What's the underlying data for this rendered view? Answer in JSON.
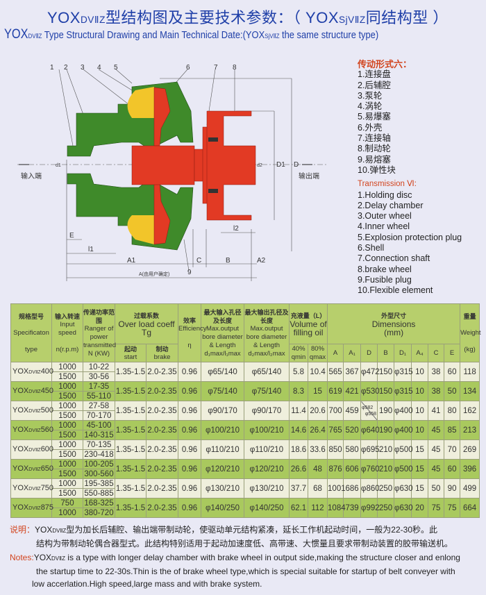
{
  "title": {
    "cn_prefix": "YOX",
    "cn_sub": "DVⅡZ",
    "cn_text": "型结构图及主要技术参数：（ YOX",
    "cn_sub2": "SjVⅡZ",
    "cn_tail": "同结构型 ）",
    "en_prefix": "YOX",
    "en_sub": "DVⅡZ",
    "en_text": " Type Structural Drawing and Main Technical Date:(YOX",
    "en_sub2": "SjVⅡZ",
    "en_tail": " the same structure type)"
  },
  "drawing": {
    "input_label": "输入端",
    "output_label": "输出端",
    "part_numbers": [
      "1",
      "2",
      "3",
      "4",
      "5",
      "6",
      "7",
      "8",
      "9",
      "10"
    ],
    "dims": {
      "A": "A(由用户确定)",
      "A1": "A1",
      "A2": "A2",
      "B": "B",
      "C": "C",
      "E": "E",
      "l1": "l1",
      "l2": "l2",
      "D": "D",
      "D1": "D1",
      "d1": "d1",
      "d2": "d2"
    },
    "colors": {
      "housing": "#3f8a2a",
      "rotor": "#e23a24",
      "oil": "#f2c52a"
    }
  },
  "legend": {
    "cn_title": "传动形式六：",
    "cn_items": [
      "1.连接盘",
      "2.后辅腔",
      "3.泵轮",
      "4.涡轮",
      "5.易爆塞",
      "6.外壳",
      "7.连接轴",
      "8.制动轮",
      "9.易熔塞",
      "10.弹性块"
    ],
    "en_title": "Transmission Ⅵ:",
    "en_items": [
      "1.Holding disc",
      "2.Delay chamber",
      "3.Outer wheel",
      "4.Inner wheel",
      "5.Explosion protection plug",
      "6.Shell",
      "7.Connection shaft",
      "8.brake wheel",
      "9.Fusible plug",
      "10.Flexible element"
    ]
  },
  "table": {
    "headers": {
      "spec_cn": "规格型号",
      "spec_en": "Specificaton",
      "spec_type": "type",
      "speed_cn": "输入转速",
      "speed_en": "Input speed",
      "speed_unit": "n(r.p.m)",
      "power_cn": "传递功率范围",
      "power_en": "Ranger of power transmitted",
      "power_unit": "N (KW)",
      "overload_cn": "过载系数",
      "overload_en": "Over load coeff",
      "overload_sym": "Tg",
      "start_cn": "起动",
      "start_en": "start",
      "brake_cn": "制动",
      "brake_en": "brake",
      "eff_cn": "效率",
      "eff_en": "Efficiency",
      "eff_sym": "η",
      "inbore_cn": "最大输入孔径及长度",
      "inbore_en": "Max.output bore diameter & Length",
      "inbore_unit": "d₁max/l₁max",
      "outbore_cn": "最大输出孔径及长度",
      "outbore_en": "Max.output bore diameter & Length",
      "outbore_unit": "d₂max/l₂max",
      "oil_cn": "充液量（L）",
      "oil_en": "Volume of filling oil",
      "q40": "40% qmin",
      "q80": "80% qmax",
      "dim_cn": "外型尺寸",
      "dim_en": "Dimensions",
      "dim_unit": "(mm)",
      "dim_cols": [
        "A",
        "A₁",
        "D",
        "B",
        "D₁",
        "A₄",
        "C",
        "E"
      ],
      "weight_cn": "重量",
      "weight_en": "Weight",
      "weight_unit": "(kg)"
    },
    "rows": [
      {
        "prefix": "YOX",
        "sub": "DVⅡZ",
        "size": "400",
        "speeds": [
          "1000",
          "1500"
        ],
        "powers": [
          "10-22",
          "30-56"
        ],
        "start": "1.35-1.5",
        "brake": "2.0-2.35",
        "eff": "0.96",
        "inbore": "φ65/140",
        "outbore": "φ65/140",
        "q40": "5.8",
        "q80": "10.4",
        "A": "565",
        "A1": "367",
        "D": "φ472",
        "B": "150",
        "D1": "φ315",
        "A4": "10",
        "C": "38",
        "E": "60",
        "weight": "118"
      },
      {
        "prefix": "YOX",
        "sub": "DVⅡZ",
        "size": "450",
        "speeds": [
          "1000",
          "1500"
        ],
        "powers": [
          "17-35",
          "55-110"
        ],
        "start": "1.35-1.5",
        "brake": "2.0-2.35",
        "eff": "0.96",
        "inbore": "φ75/140",
        "outbore": "φ75/140",
        "q40": "8.3",
        "q80": "15",
        "A": "619",
        "A1": "421",
        "D": "φ530",
        "B": "150",
        "D1": "φ315",
        "A4": "10",
        "C": "38",
        "E": "50",
        "weight": "134"
      },
      {
        "prefix": "YOX",
        "sub": "DVⅡZ",
        "size": "500",
        "speeds": [
          "1000",
          "1500"
        ],
        "powers": [
          "27-58",
          "70-170"
        ],
        "start": "1.35-1.5",
        "brake": "2.0-2.35",
        "eff": "0.96",
        "inbore": "φ90/170",
        "outbore": "φ90/170",
        "q40": "11.4",
        "q80": "20.6",
        "A": "700",
        "A1": "459",
        "D": "φ582",
        "D_alt": "φ558",
        "B": "190",
        "D1": "φ400",
        "A4": "10",
        "C": "41",
        "E": "80",
        "weight": "162"
      },
      {
        "prefix": "YOX",
        "sub": "DVⅡZ",
        "size": "560",
        "speeds": [
          "1000",
          "1500"
        ],
        "powers": [
          "45-100",
          "140-315"
        ],
        "start": "1.35-1.5",
        "brake": "2.0-2.35",
        "eff": "0.96",
        "inbore": "φ100/210",
        "outbore": "φ100/210",
        "q40": "14.6",
        "q80": "26.4",
        "A": "765",
        "A1": "520",
        "D": "φ640",
        "B": "190",
        "D1": "φ400",
        "A4": "10",
        "C": "45",
        "E": "85",
        "weight": "213"
      },
      {
        "prefix": "YOX",
        "sub": "DVⅡZ",
        "size": "600",
        "speeds": [
          "1000",
          "1500"
        ],
        "powers": [
          "70-135",
          "230-418"
        ],
        "start": "1.35-1.5",
        "brake": "2.0-2.35",
        "eff": "0.96",
        "inbore": "φ110/210",
        "outbore": "φ110/210",
        "q40": "18.6",
        "q80": "33.6",
        "A": "850",
        "A1": "580",
        "D": "φ695",
        "B": "210",
        "D1": "φ500",
        "A4": "15",
        "C": "45",
        "E": "70",
        "weight": "269"
      },
      {
        "prefix": "YOX",
        "sub": "DVⅡZ",
        "size": "650",
        "speeds": [
          "1000",
          "1500"
        ],
        "powers": [
          "100-205",
          "300-560"
        ],
        "start": "1.35-1.5",
        "brake": "2.0-2.35",
        "eff": "0.96",
        "inbore": "φ120/210",
        "outbore": "φ120/210",
        "q40": "26.6",
        "q80": "48",
        "A": "876",
        "A1": "606",
        "D": "φ760",
        "B": "210",
        "D1": "φ500",
        "A4": "15",
        "C": "45",
        "E": "60",
        "weight": "396"
      },
      {
        "prefix": "YOX",
        "sub": "DVⅡZ",
        "size": "750",
        "speeds": [
          "1000",
          "1500"
        ],
        "powers": [
          "195-385",
          "550-885"
        ],
        "start": "1.35-1.5",
        "brake": "2.0-2.35",
        "eff": "0.96",
        "inbore": "φ130/210",
        "outbore": "φ130/210",
        "q40": "37.7",
        "q80": "68",
        "A": "1001",
        "A1": "686",
        "D": "φ860",
        "B": "250",
        "D1": "φ630",
        "A4": "15",
        "C": "50",
        "E": "90",
        "weight": "499"
      },
      {
        "prefix": "YOX",
        "sub": "DVⅡZ",
        "size": "875",
        "speeds": [
          "750",
          "1000"
        ],
        "powers": [
          "168-325",
          "380-720"
        ],
        "start": "1.35-1.5",
        "brake": "2.0-2.35",
        "eff": "0.96",
        "inbore": "φ140/250",
        "outbore": "φ140/250",
        "q40": "62.1",
        "q80": "112",
        "A": "1084",
        "A1": "739",
        "D": "φ992",
        "B": "250",
        "D1": "φ630",
        "A4": "20",
        "C": "75",
        "E": "75",
        "weight": "664"
      }
    ],
    "colors": {
      "header": "#b7cf6c",
      "row_light": "#efefdc",
      "row_green": "#a9c95e"
    }
  },
  "notes": {
    "cn_label": "说明：",
    "cn_prefix": "YOX",
    "cn_sub": "DVⅡZ",
    "cn_line1": "型为加长后辅腔、输出端带制动轮，使驱动单元结构紧凑，延长工作机起动时间，一般为22-30秒。此",
    "cn_line2": "结构为带制动轮偶合器型式。此结构特别适用于起动加速度低、高带速、大惯量且要求带制动装置的胶带输送机。",
    "en_label": "Notes:",
    "en_prefix": "YOX",
    "en_sub": "DVⅡZ",
    "en_line1": " is a type with longer delay chamber with brake wheel in output side,making the structure closer and enlong",
    "en_line2": "the startup time to 22-30s.Thin is the of brake wheel type,which is special suitable for startup of belt conveyer with",
    "en_line3": "low accerlation.High speed,large mass and with brake system."
  }
}
